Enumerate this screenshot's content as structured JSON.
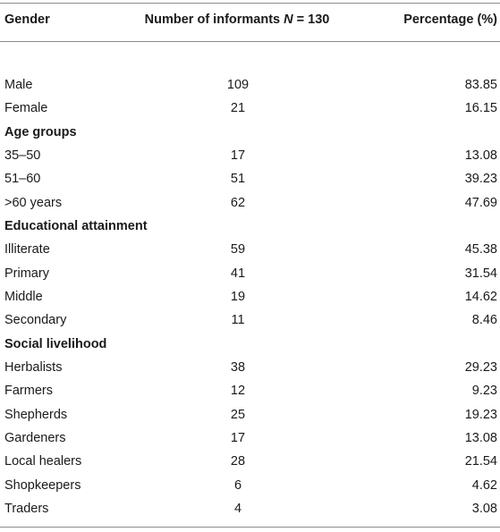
{
  "header": {
    "col1": "Gender",
    "col2_prefix": "Number of informants ",
    "col2_var": "N",
    "col2_suffix": " = 130",
    "col3": "Percentage (%)"
  },
  "rows": [
    {
      "type": "data",
      "label": "Male",
      "count": "109",
      "pct": "83.85"
    },
    {
      "type": "data",
      "label": "Female",
      "count": "21",
      "pct": "16.15"
    },
    {
      "type": "section",
      "label": "Age groups"
    },
    {
      "type": "data",
      "label": "35–50",
      "count": "17",
      "pct": "13.08"
    },
    {
      "type": "data",
      "label": "51–60",
      "count": "51",
      "pct": "39.23"
    },
    {
      "type": "data",
      "label": ">60 years",
      "count": "62",
      "pct": "47.69"
    },
    {
      "type": "section",
      "label": "Educational attainment"
    },
    {
      "type": "data",
      "label": "Illiterate",
      "count": "59",
      "pct": "45.38"
    },
    {
      "type": "data",
      "label": "Primary",
      "count": "41",
      "pct": "31.54"
    },
    {
      "type": "data",
      "label": "Middle",
      "count": "19",
      "pct": "14.62"
    },
    {
      "type": "data",
      "label": "Secondary",
      "count": "11",
      "pct": "8.46"
    },
    {
      "type": "section",
      "label": "Social livelihood"
    },
    {
      "type": "data",
      "label": "Herbalists",
      "count": "38",
      "pct": "29.23"
    },
    {
      "type": "data",
      "label": "Farmers",
      "count": "12",
      "pct": "9.23"
    },
    {
      "type": "data",
      "label": "Shepherds",
      "count": "25",
      "pct": "19.23"
    },
    {
      "type": "data",
      "label": "Gardeners",
      "count": "17",
      "pct": "13.08"
    },
    {
      "type": "data",
      "label": "Local healers",
      "count": "28",
      "pct": "21.54"
    },
    {
      "type": "data",
      "label": "Shopkeepers",
      "count": "6",
      "pct": "4.62"
    },
    {
      "type": "data",
      "label": "Traders",
      "count": "4",
      "pct": "3.08"
    }
  ]
}
